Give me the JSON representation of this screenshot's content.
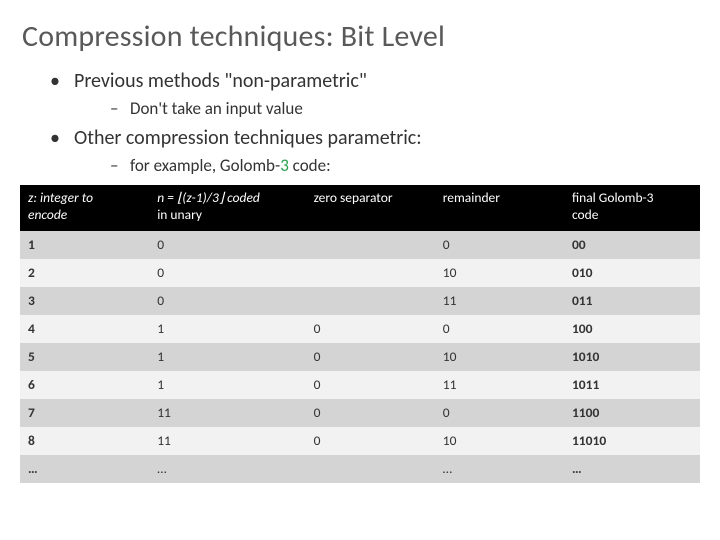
{
  "title": "Compression techniques: Bit Level",
  "bullets": {
    "b1": "Previous methods \"non-parametric\"",
    "b1s1": "Don't take an input value",
    "b2": "Other compression techniques parametric:",
    "b2s1_prefix": "for example, Golomb-",
    "b2s1_num": "3",
    "b2s1_suffix": " code:"
  },
  "table": {
    "type": "table",
    "header_bg": "#000000",
    "header_fg": "#ffffff",
    "row_odd_bg": "#d4d4d4",
    "row_even_bg": "#f2f2f2",
    "accent_color": "#2aa14f",
    "font_size_pt": 13.5,
    "col_widths_pct": [
      19,
      23,
      19,
      19,
      20
    ],
    "columns": {
      "c1_line1": "z: integer to",
      "c1_line2": "encode",
      "c2_expr": "n = ⌊(z-1)/3⌋ coded",
      "c2_line2": "in unary",
      "c3": "zero separator",
      "c4": "remainder",
      "c5_line1": "final Golomb-3",
      "c5_line2": "code"
    },
    "rows": [
      {
        "z": "1",
        "n": "0",
        "sep": "",
        "rem": "0",
        "code": "00"
      },
      {
        "z": "2",
        "n": "0",
        "sep": "",
        "rem": "10",
        "code": "010"
      },
      {
        "z": "3",
        "n": "0",
        "sep": "",
        "rem": "11",
        "code": "011"
      },
      {
        "z": "4",
        "n": "1",
        "sep": "0",
        "rem": "0",
        "code": "100"
      },
      {
        "z": "5",
        "n": "1",
        "sep": "0",
        "rem": "10",
        "code": "1010"
      },
      {
        "z": "6",
        "n": "1",
        "sep": "0",
        "rem": "11",
        "code": "1011"
      },
      {
        "z": "7",
        "n": "11",
        "sep": "0",
        "rem": "0",
        "code": "1100"
      },
      {
        "z": "8",
        "n": "11",
        "sep": "0",
        "rem": "10",
        "code": "11010"
      },
      {
        "z": "…",
        "n": "…",
        "sep": "",
        "rem": "…",
        "code": "…"
      }
    ]
  }
}
